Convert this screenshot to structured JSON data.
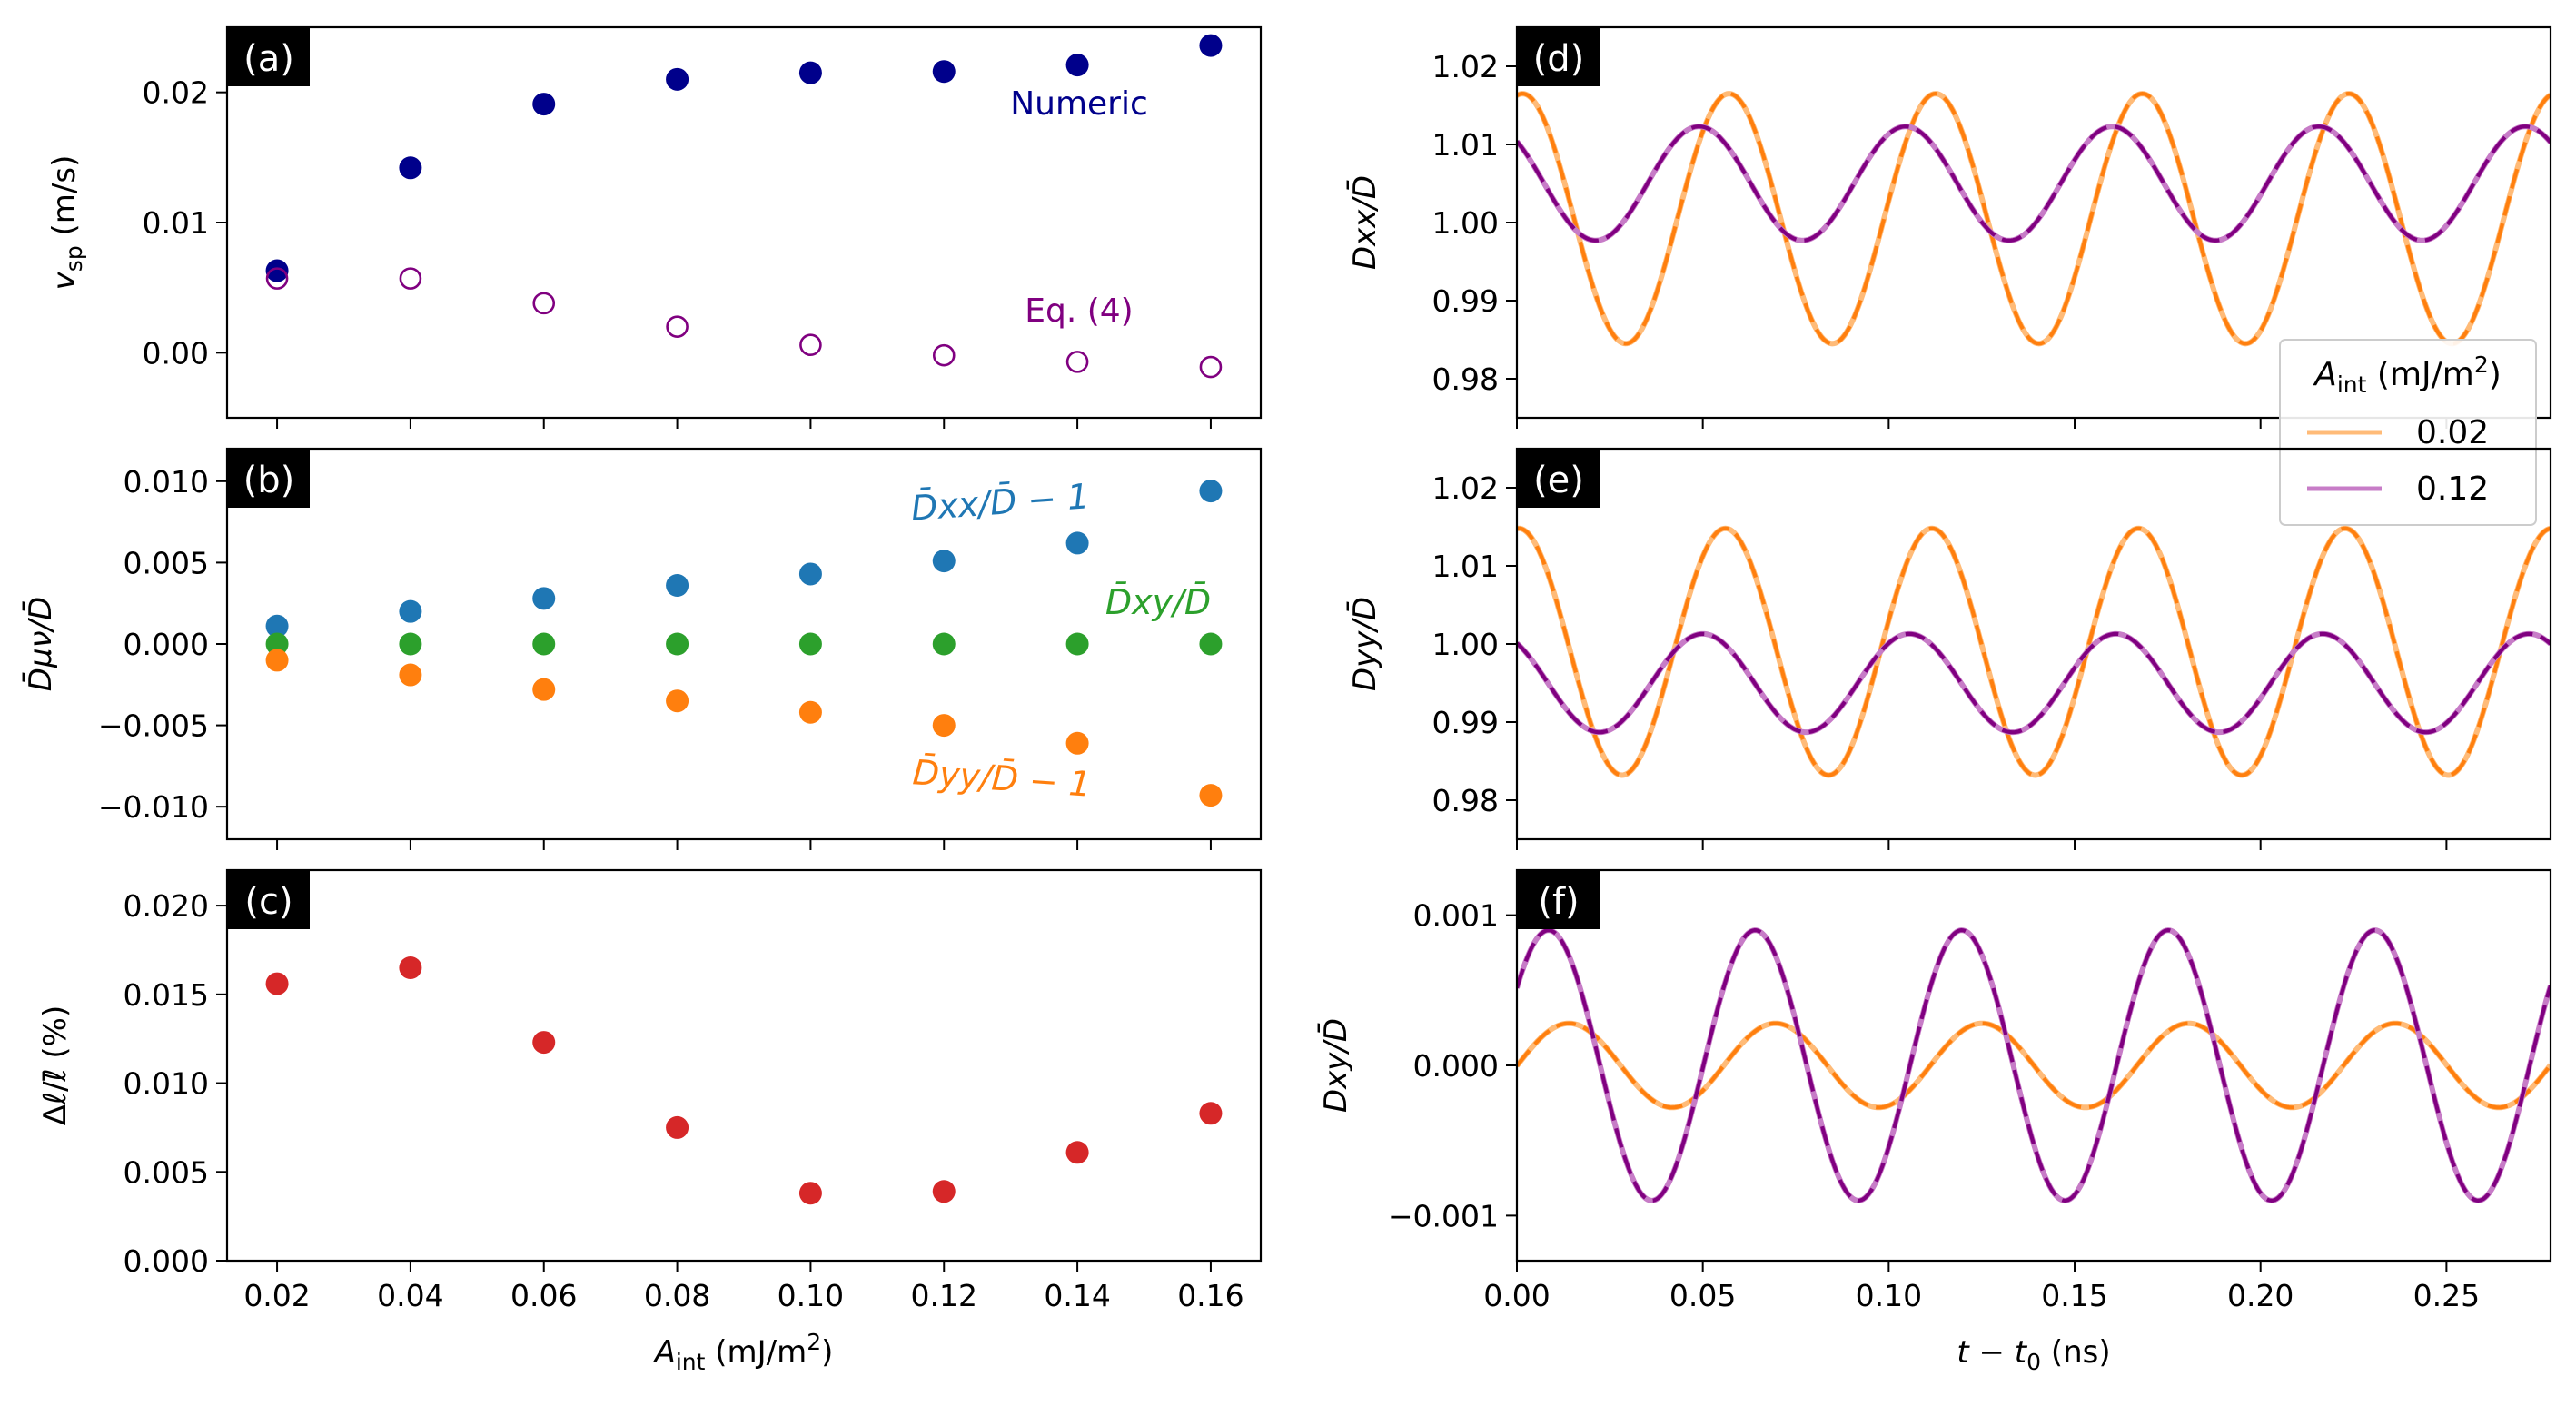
{
  "figure": {
    "x_axis_left": {
      "label_main": "A",
      "label_sub": "int",
      "label_rest": " (mJ/m",
      "label_sup": "2",
      "label_end": ")"
    },
    "x_axis_right": {
      "label_main": "t − t",
      "label_sub": "0",
      "label_rest": " (ns)"
    }
  },
  "chart_data": [
    {
      "id": "a",
      "type": "scatter",
      "panel_label": "(a)",
      "ylabel": {
        "main": "v",
        "sub": "sp",
        "rest": " (m/s)"
      },
      "xlim": [
        0.0125,
        0.1675
      ],
      "ylim": [
        -0.005,
        0.025
      ],
      "xticks": [
        0.02,
        0.04,
        0.06,
        0.08,
        0.1,
        0.12,
        0.14,
        0.16
      ],
      "yticks": [
        0.0,
        0.01,
        0.02
      ],
      "ytick_labels": [
        "0.00",
        "0.01",
        "0.02"
      ],
      "x": [
        0.02,
        0.04,
        0.06,
        0.08,
        0.1,
        0.12,
        0.14,
        0.16
      ],
      "series": [
        {
          "name": "Numeric",
          "color": "#00008b",
          "filled": true,
          "values": [
            0.0063,
            0.0142,
            0.0191,
            0.021,
            0.0215,
            0.0216,
            0.0221,
            0.0236
          ]
        },
        {
          "name": "Eq. (4)",
          "color": "#800080",
          "filled": false,
          "values": [
            0.0057,
            0.0057,
            0.0038,
            0.002,
            0.0006,
            -0.0002,
            -0.0007,
            -0.0011
          ]
        }
      ],
      "annotations": [
        {
          "text": "Numeric",
          "color": "#00008b"
        },
        {
          "text": "Eq. (4)",
          "color": "#800080"
        }
      ]
    },
    {
      "id": "b",
      "type": "scatter",
      "panel_label": "(b)",
      "ylabel": {
        "text": "D̄μν/D̄"
      },
      "xlim": [
        0.0125,
        0.1675
      ],
      "ylim": [
        -0.012,
        0.012
      ],
      "xticks": [
        0.02,
        0.04,
        0.06,
        0.08,
        0.1,
        0.12,
        0.14,
        0.16
      ],
      "yticks": [
        -0.01,
        -0.005,
        0.0,
        0.005,
        0.01
      ],
      "ytick_labels": [
        "−0.010",
        "−0.005",
        "0.000",
        "0.005",
        "0.010"
      ],
      "x": [
        0.02,
        0.04,
        0.06,
        0.08,
        0.1,
        0.12,
        0.14,
        0.16
      ],
      "series": [
        {
          "name": "D̄xx/D̄ − 1",
          "color": "#1f77b4",
          "filled": true,
          "values": [
            0.0011,
            0.002,
            0.0028,
            0.0036,
            0.0043,
            0.0051,
            0.0062,
            0.0094
          ]
        },
        {
          "name": "D̄xy/D̄",
          "color": "#2ca02c",
          "filled": true,
          "values": [
            0.0,
            0.0,
            0.0,
            0.0,
            0.0,
            0.0,
            0.0,
            0.0
          ]
        },
        {
          "name": "D̄yy/D̄ − 1",
          "color": "#ff7f0e",
          "filled": true,
          "values": [
            -0.001,
            -0.0019,
            -0.0028,
            -0.0035,
            -0.0042,
            -0.005,
            -0.0061,
            -0.0093
          ]
        }
      ],
      "annotations": [
        {
          "text": "D̄xx/D̄ − 1",
          "color": "#1f77b4"
        },
        {
          "text": "D̄xy/D̄",
          "color": "#2ca02c"
        },
        {
          "text": "D̄yy/D̄ − 1",
          "color": "#ff7f0e"
        }
      ]
    },
    {
      "id": "c",
      "type": "scatter",
      "panel_label": "(c)",
      "ylabel": {
        "text": "Δℓ/ℓ̄ (%)"
      },
      "xlim": [
        0.0125,
        0.1675
      ],
      "ylim": [
        0.0,
        0.022
      ],
      "xticks": [
        0.02,
        0.04,
        0.06,
        0.08,
        0.1,
        0.12,
        0.14,
        0.16
      ],
      "xtick_labels": [
        "0.02",
        "0.04",
        "0.06",
        "0.08",
        "0.10",
        "0.12",
        "0.14",
        "0.16"
      ],
      "yticks": [
        0.0,
        0.005,
        0.01,
        0.015,
        0.02
      ],
      "ytick_labels": [
        "0.000",
        "0.005",
        "0.010",
        "0.015",
        "0.020"
      ],
      "x": [
        0.02,
        0.04,
        0.06,
        0.08,
        0.1,
        0.12,
        0.14,
        0.16
      ],
      "series": [
        {
          "name": "Δℓ/ℓ̄",
          "color": "#d62728",
          "filled": true,
          "values": [
            0.0156,
            0.0165,
            0.0123,
            0.0075,
            0.0038,
            0.0039,
            0.0061,
            0.0083
          ]
        }
      ]
    },
    {
      "id": "d",
      "type": "line",
      "panel_label": "(d)",
      "ylabel": {
        "text": "Dxx/D̄"
      },
      "xlim": [
        0.0,
        0.278
      ],
      "ylim": [
        0.975,
        1.025
      ],
      "xticks": [
        0.0,
        0.05,
        0.1,
        0.15,
        0.2,
        0.25
      ],
      "yticks": [
        0.98,
        0.99,
        1.0,
        1.01,
        1.02
      ],
      "ytick_labels": [
        "0.98",
        "0.99",
        "1.00",
        "1.01",
        "1.02"
      ],
      "period_ns": 0.05556,
      "series": [
        {
          "name": "0.02",
          "color": "#ff7f0e",
          "mean": 1.0005,
          "amplitude": 0.016,
          "phase_max_at": 0.0015
        },
        {
          "name": "0.12",
          "color": "#800080",
          "mean": 1.005,
          "amplitude": 0.0073,
          "phase_max_at": 0.049
        }
      ],
      "legend": {
        "title_main": "A",
        "title_sub": "int",
        "title_rest": " (mJ/m",
        "title_sup": "2",
        "title_end": ")",
        "entries": [
          {
            "label": "0.02",
            "color": "#ffbb78"
          },
          {
            "label": "0.12",
            "color": "#c77cc7"
          }
        ],
        "placement": "lower-right"
      }
    },
    {
      "id": "e",
      "type": "line",
      "panel_label": "(e)",
      "ylabel": {
        "text": "Dyy/D̄"
      },
      "xlim": [
        0.0,
        0.278
      ],
      "ylim": [
        0.975,
        1.025
      ],
      "xticks": [
        0.0,
        0.05,
        0.1,
        0.15,
        0.2,
        0.25
      ],
      "yticks": [
        0.98,
        0.99,
        1.0,
        1.01,
        1.02
      ],
      "ytick_labels": [
        "0.98",
        "0.99",
        "1.00",
        "1.01",
        "1.02"
      ],
      "period_ns": 0.05556,
      "series": [
        {
          "name": "0.02",
          "color": "#ff7f0e",
          "mean": 0.999,
          "amplitude": 0.0158,
          "phase_max_at": 0.0005
        },
        {
          "name": "0.12",
          "color": "#800080",
          "mean": 0.995,
          "amplitude": 0.0063,
          "phase_max_at": 0.05
        }
      ]
    },
    {
      "id": "f",
      "type": "line",
      "panel_label": "(f)",
      "ylabel": {
        "text": "Dxy/D̄"
      },
      "xlim": [
        0.0,
        0.278
      ],
      "ylim": [
        -0.0013,
        0.0013
      ],
      "xticks": [
        0.0,
        0.05,
        0.1,
        0.15,
        0.2,
        0.25
      ],
      "xtick_labels": [
        "0.00",
        "0.05",
        "0.10",
        "0.15",
        "0.20",
        "0.25"
      ],
      "yticks": [
        -0.001,
        0.0,
        0.001
      ],
      "ytick_labels": [
        "−0.001",
        "0.000",
        "0.001"
      ],
      "period_ns": 0.05556,
      "series": [
        {
          "name": "0.02",
          "color": "#ff7f0e",
          "mean": 0.0,
          "amplitude": 0.00028,
          "phase_max_at": 0.014
        },
        {
          "name": "0.12",
          "color": "#800080",
          "mean": 0.0,
          "amplitude": 0.0009,
          "phase_max_at": 0.0085
        }
      ]
    }
  ]
}
